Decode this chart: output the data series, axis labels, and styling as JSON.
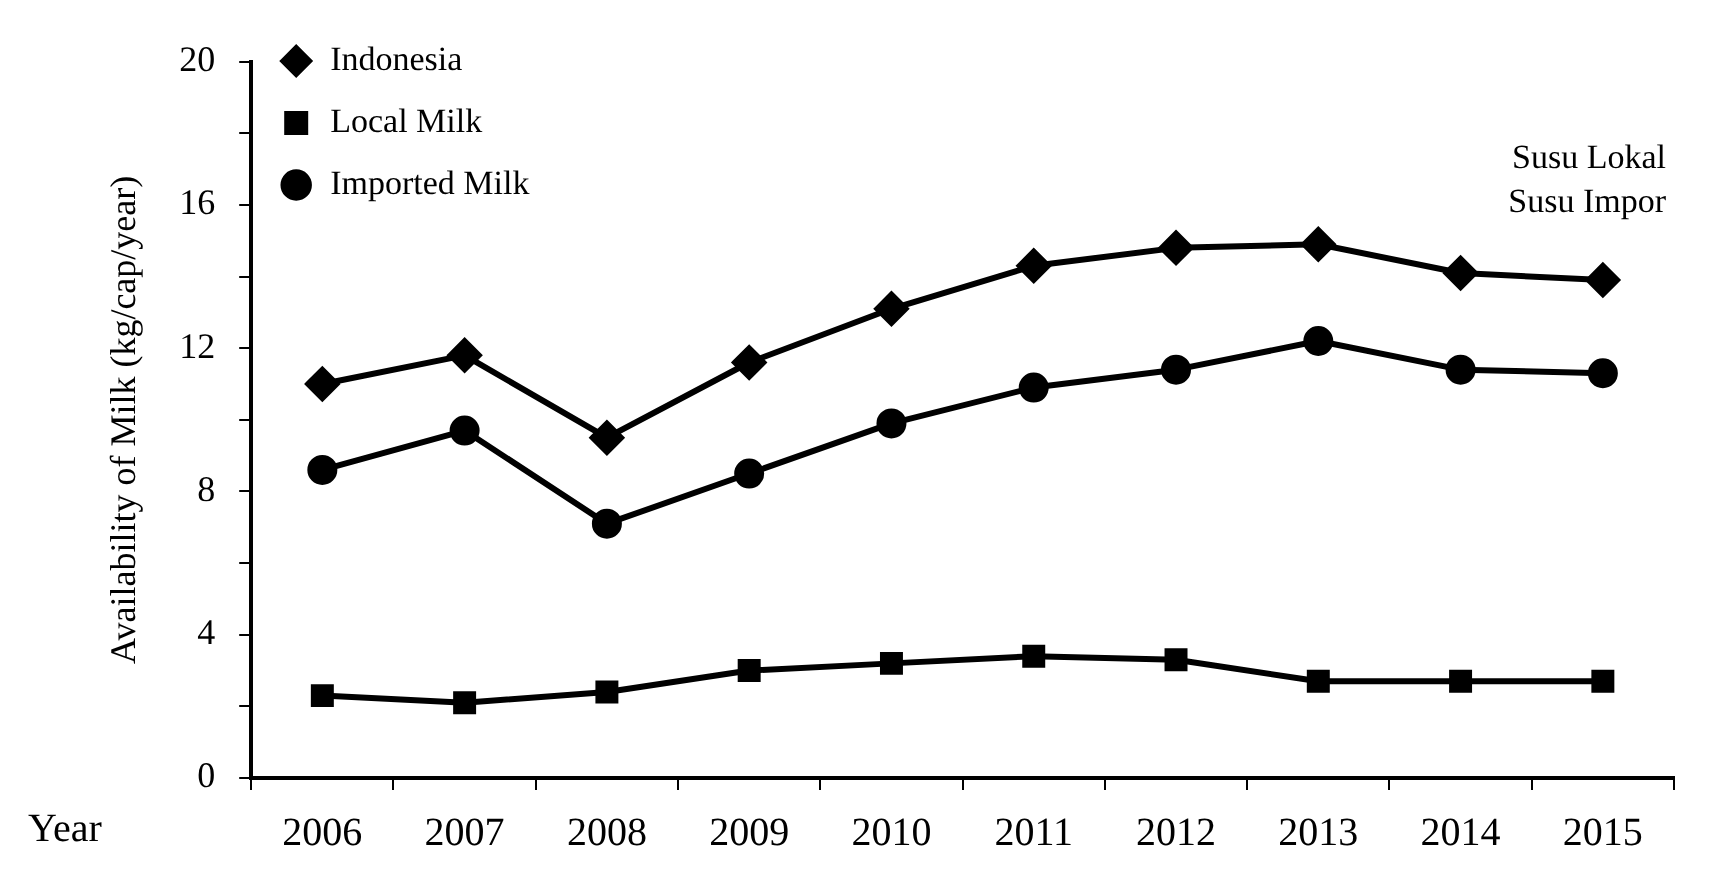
{
  "chart_data": {
    "type": "line",
    "ylabel": "Availability of Milk (kg/cap/year)",
    "xlabel": "Year",
    "categories": [
      "2006",
      "2007",
      "2008",
      "2009",
      "2010",
      "2011",
      "2012",
      "2013",
      "2014",
      "2015"
    ],
    "series": [
      {
        "name": "Indonesia",
        "color": "#000000",
        "marker": "diamond",
        "values": [
          11.0,
          11.8,
          9.5,
          11.6,
          13.1,
          14.3,
          14.8,
          14.9,
          14.1,
          13.9
        ]
      },
      {
        "name": "Local Milk",
        "color": "#000000",
        "marker": "square",
        "values": [
          2.3,
          2.1,
          2.4,
          3.0,
          3.2,
          3.4,
          3.3,
          2.7,
          2.7,
          2.7
        ]
      },
      {
        "name": "Imported Milk",
        "color": "#000000",
        "marker": "circle",
        "values": [
          8.6,
          9.7,
          7.1,
          8.5,
          9.9,
          10.9,
          11.4,
          12.2,
          11.4,
          11.3
        ]
      }
    ],
    "ylim": [
      0,
      20
    ],
    "yticks": [
      0,
      {
        "value": 2,
        "label": null
      },
      4,
      {
        "value": 6,
        "label": null
      },
      8,
      {
        "value": 10,
        "label": null
      },
      12,
      {
        "value": 14,
        "label": null
      },
      16,
      {
        "value": 18,
        "label": null
      },
      20
    ],
    "grid": false,
    "legend": "top left",
    "line_style": "solid",
    "annotations": [
      "Susu Lokal",
      "Susu Impor"
    ]
  }
}
